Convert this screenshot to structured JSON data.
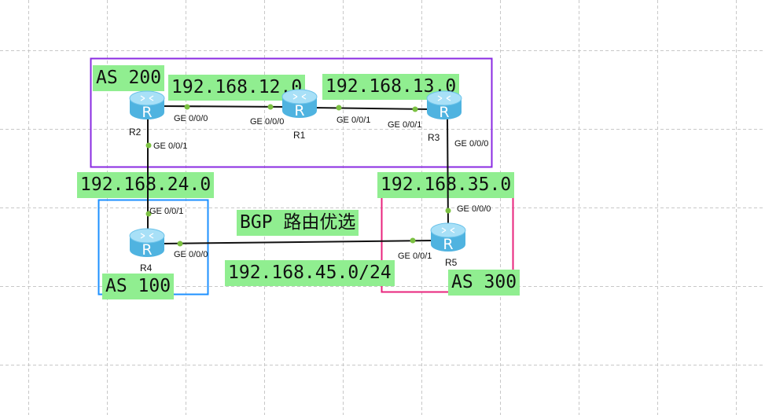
{
  "title": "BGP 路由优选",
  "colors": {
    "label_bg": "#90ee90",
    "as200": "#8a2be2",
    "as100": "#1e90ff",
    "as300": "#e8247c",
    "link": "#111111",
    "port_dot": "#7cc142",
    "router": "#5bc0eb"
  },
  "areas": [
    {
      "id": "as200",
      "label": "AS 200"
    },
    {
      "id": "as100",
      "label": "AS 100"
    },
    {
      "id": "as300",
      "label": "AS 300"
    }
  ],
  "networks": [
    "192.168.12.0",
    "192.168.13.0",
    "192.168.24.0",
    "192.168.35.0",
    "192.168.45.0/24"
  ],
  "routers": [
    {
      "name": "R1",
      "icon": "router-icon"
    },
    {
      "name": "R2",
      "icon": "router-icon"
    },
    {
      "name": "R3",
      "icon": "router-icon"
    },
    {
      "name": "R4",
      "icon": "router-icon"
    },
    {
      "name": "R5",
      "icon": "router-icon"
    }
  ],
  "links": [
    {
      "from": "R2",
      "from_port": "GE 0/0/0",
      "to": "R1",
      "to_port": "GE 0/0/0"
    },
    {
      "from": "R1",
      "from_port": "GE 0/0/1",
      "to": "R3",
      "to_port": "GE 0/0/1"
    },
    {
      "from": "R2",
      "from_port": "GE 0/0/1",
      "to": "R4",
      "to_port": "GE 0/0/1"
    },
    {
      "from": "R3",
      "from_port": "GE 0/0/0",
      "to": "R5",
      "to_port": "GE 0/0/0"
    },
    {
      "from": "R4",
      "from_port": "GE 0/0/0",
      "to": "R5",
      "to_port": "GE 0/0/1"
    }
  ]
}
